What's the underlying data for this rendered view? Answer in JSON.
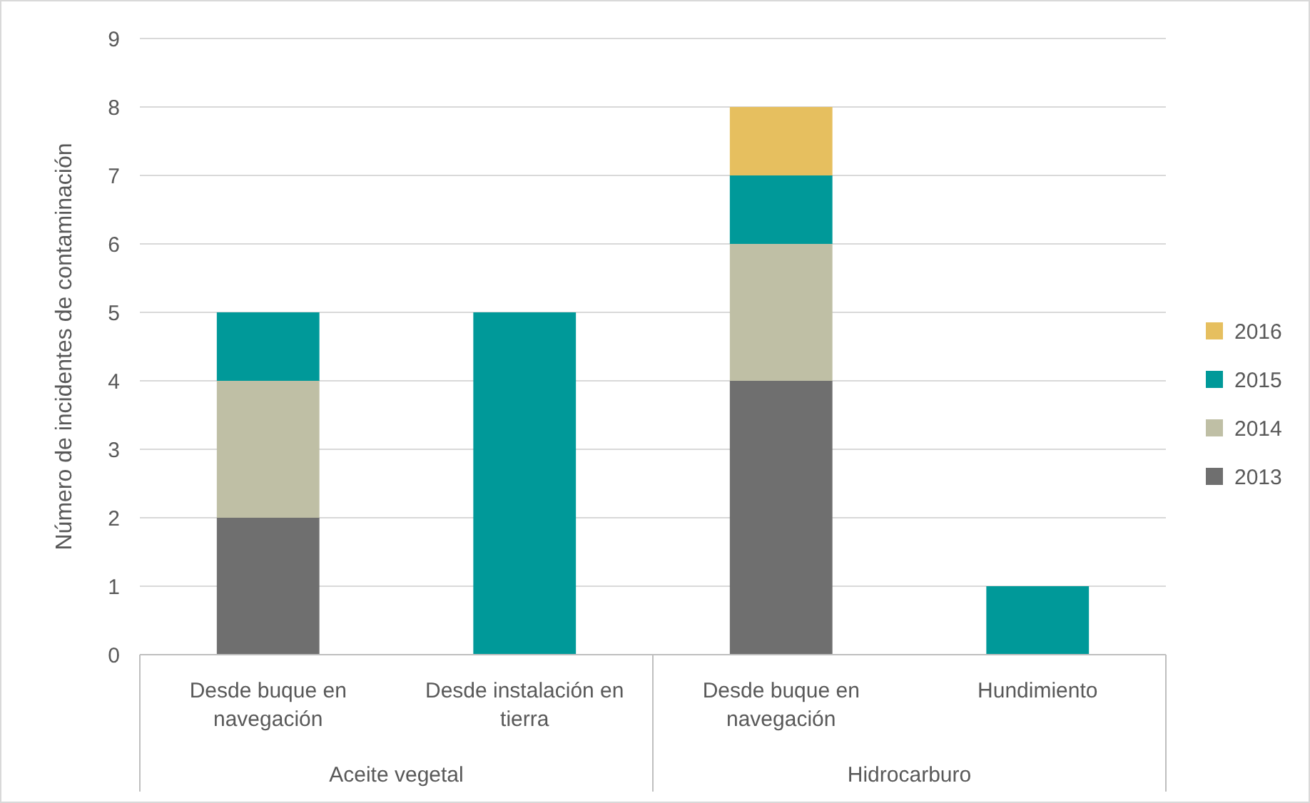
{
  "chart_data": {
    "type": "bar",
    "stacked": true,
    "ylabel": "Número de incidentes de contaminación",
    "categories": [
      "Desde buque en navegación",
      "Desde instalación en tierra",
      "Desde buque en navegación",
      "Hundimiento"
    ],
    "annotations": [
      "Aceite vegetal",
      "Hidrocarburo"
    ],
    "series": [
      {
        "name": "2013",
        "color": "#6f6f6f",
        "values": [
          2,
          0,
          4,
          0
        ]
      },
      {
        "name": "2014",
        "color": "#bfbfa5",
        "values": [
          2,
          0,
          2,
          0
        ]
      },
      {
        "name": "2015",
        "color": "#009999",
        "values": [
          1,
          5,
          1,
          1
        ]
      },
      {
        "name": "2016",
        "color": "#e6bf5f",
        "values": [
          0,
          0,
          1,
          0
        ]
      }
    ],
    "ylim": [
      0,
      9
    ],
    "yticks": [
      0,
      1,
      2,
      3,
      4,
      5,
      6,
      7,
      8,
      9
    ],
    "grid": "y",
    "legend": "right"
  }
}
